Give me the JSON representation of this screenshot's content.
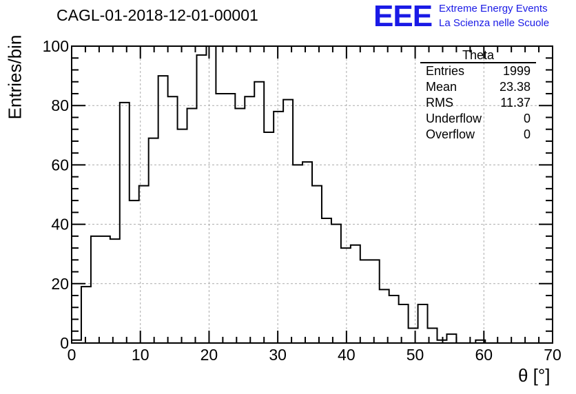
{
  "title": "CAGL-01-2018-12-01-00001",
  "logo": {
    "mark": "EEE",
    "line1": "Extreme Energy Events",
    "line2": "La Scienza nelle Scuole",
    "color": "#1a1ae6"
  },
  "stats": {
    "name": "Theta",
    "rows": [
      {
        "label": "Entries",
        "value": "1999"
      },
      {
        "label": "Mean",
        "value": "23.38"
      },
      {
        "label": "RMS",
        "value": "11.37"
      },
      {
        "label": "Underflow",
        "value": "0"
      },
      {
        "label": "Overflow",
        "value": "0"
      }
    ]
  },
  "chart_data": {
    "type": "bar",
    "histogram": true,
    "xlabel": "θ [°]",
    "ylabel": "Entries/bin",
    "xlim": [
      0,
      70
    ],
    "ylim": [
      0,
      100
    ],
    "bin_width": 1.4,
    "x_ticks": [
      0,
      10,
      20,
      30,
      40,
      50,
      60,
      70
    ],
    "y_ticks": [
      0,
      20,
      40,
      60,
      80,
      100
    ],
    "grid": true,
    "values": [
      1,
      19,
      36,
      36,
      35,
      81,
      48,
      53,
      69,
      90,
      83,
      72,
      79,
      97,
      100,
      84,
      84,
      79,
      83,
      88,
      71,
      78,
      82,
      60,
      61,
      53,
      42,
      40,
      32,
      33,
      28,
      28,
      18,
      16,
      13,
      5,
      13,
      5,
      1,
      3,
      0,
      0,
      1,
      0,
      0,
      0,
      0,
      0,
      0,
      0
    ]
  }
}
